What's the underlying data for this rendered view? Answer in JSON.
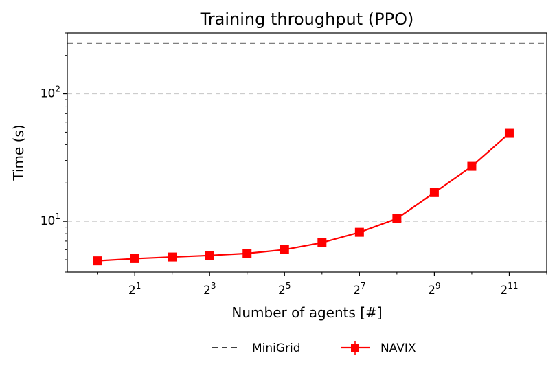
{
  "chart_data": {
    "type": "line",
    "title": "Training throughput (PPO)",
    "xlabel": "Number of agents [#]",
    "ylabel": "Time (s)",
    "xscale": "log2",
    "yscale": "log10",
    "xlim_exp": [
      -0.8,
      12.0
    ],
    "ylim": [
      4.0,
      300
    ],
    "grid": "y-major-dashed",
    "legend_position": "bottom-center-outside",
    "x_tick_labels": [
      {
        "base": "2",
        "exp": "1",
        "x_exp": 1
      },
      {
        "base": "2",
        "exp": "3",
        "x_exp": 3
      },
      {
        "base": "2",
        "exp": "5",
        "x_exp": 5
      },
      {
        "base": "2",
        "exp": "7",
        "x_exp": 7
      },
      {
        "base": "2",
        "exp": "9",
        "x_exp": 9
      },
      {
        "base": "2",
        "exp": "11",
        "x_exp": 11
      }
    ],
    "y_tick_labels": [
      {
        "base": "10",
        "exp": "1",
        "value": 10
      },
      {
        "base": "10",
        "exp": "2",
        "value": 100
      }
    ],
    "series": [
      {
        "name": "MiniGrid",
        "style": "dashed-horizontal",
        "color": "#000000",
        "value": 250
      },
      {
        "name": "NAVIX",
        "style": "line-square-markers",
        "color": "#ff0000",
        "x_exp": [
          0,
          1,
          2,
          3,
          4,
          5,
          6,
          7,
          8,
          9,
          10,
          11
        ],
        "values": [
          4.9,
          5.1,
          5.25,
          5.4,
          5.6,
          6.0,
          6.8,
          8.2,
          10.5,
          16.8,
          27.0,
          49.0
        ]
      }
    ]
  }
}
